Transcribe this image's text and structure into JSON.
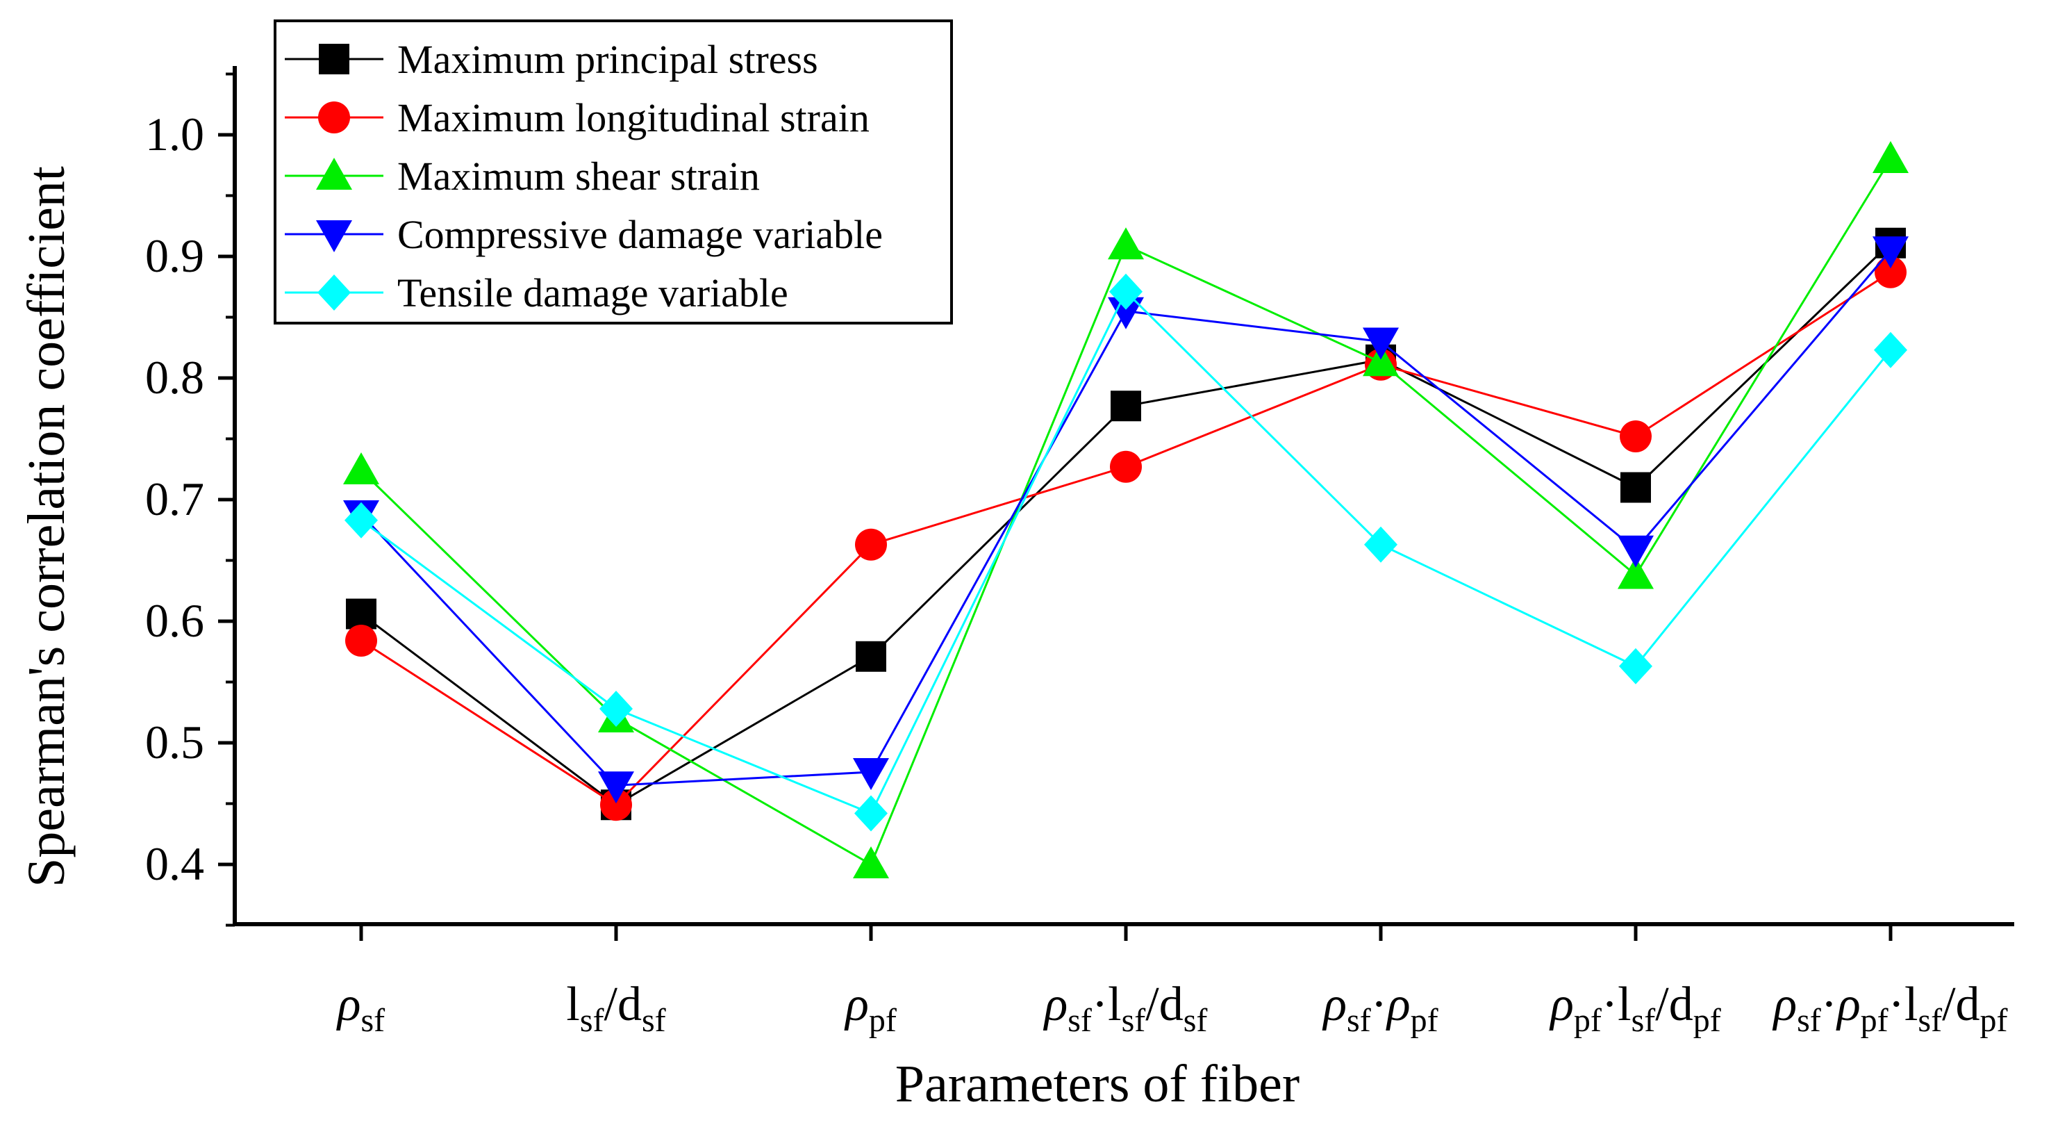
{
  "chart_data": {
    "type": "line",
    "xlabel": "Parameters of fiber",
    "ylabel": "Spearman's correlation coefficient",
    "ylim": [
      0.35,
      1.05
    ],
    "yticks": [
      "0.4",
      "0.5",
      "0.6",
      "0.7",
      "0.8",
      "0.9",
      "1.0"
    ],
    "categories": [
      [
        {
          "t": "ρ",
          "it": true
        },
        {
          "t": "sf",
          "sub": true
        }
      ],
      [
        {
          "t": "l"
        },
        {
          "t": "sf",
          "sub": true
        },
        {
          "t": "/d"
        },
        {
          "t": "sf",
          "sub": true
        }
      ],
      [
        {
          "t": "ρ",
          "it": true
        },
        {
          "t": "pf",
          "sub": true
        }
      ],
      [
        {
          "t": "ρ",
          "it": true
        },
        {
          "t": "sf",
          "sub": true
        },
        {
          "t": "·l"
        },
        {
          "t": "sf",
          "sub": true
        },
        {
          "t": "/d"
        },
        {
          "t": "sf",
          "sub": true
        }
      ],
      [
        {
          "t": "ρ",
          "it": true
        },
        {
          "t": "sf",
          "sub": true
        },
        {
          "t": "·"
        },
        {
          "t": "ρ",
          "it": true
        },
        {
          "t": "pf",
          "sub": true
        }
      ],
      [
        {
          "t": "ρ",
          "it": true
        },
        {
          "t": "pf",
          "sub": true
        },
        {
          "t": "·l"
        },
        {
          "t": "sf",
          "sub": true
        },
        {
          "t": "/d"
        },
        {
          "t": "pf",
          "sub": true
        }
      ],
      [
        {
          "t": "ρ",
          "it": true
        },
        {
          "t": "sf",
          "sub": true
        },
        {
          "t": "·"
        },
        {
          "t": "ρ",
          "it": true
        },
        {
          "t": "pf",
          "sub": true
        },
        {
          "t": "·l"
        },
        {
          "t": "sf",
          "sub": true
        },
        {
          "t": "/d"
        },
        {
          "t": "pf",
          "sub": true
        }
      ]
    ],
    "series": [
      {
        "name": "Maximum principal stress",
        "color": "#000000",
        "marker": "square",
        "values": [
          0.606,
          0.449,
          0.571,
          0.777,
          0.815,
          0.71,
          0.911
        ]
      },
      {
        "name": "Maximum longitudinal strain",
        "color": "#ff0000",
        "marker": "circle",
        "values": [
          0.584,
          0.449,
          0.663,
          0.727,
          0.811,
          0.752,
          0.887
        ]
      },
      {
        "name": "Maximum shear strain",
        "color": "#00ee00",
        "marker": "triangle-up",
        "values": [
          0.724,
          0.52,
          0.4,
          0.909,
          0.813,
          0.638,
          0.98
        ]
      },
      {
        "name": "Compressive damage variable",
        "color": "#0000ff",
        "marker": "triangle-down",
        "values": [
          0.688,
          0.465,
          0.476,
          0.855,
          0.83,
          0.659,
          0.905
        ]
      },
      {
        "name": "Tensile damage variable",
        "color": "#00ffff",
        "marker": "diamond",
        "values": [
          0.683,
          0.528,
          0.442,
          0.871,
          0.663,
          0.563,
          0.823
        ]
      }
    ],
    "legend_position": "top-left"
  }
}
